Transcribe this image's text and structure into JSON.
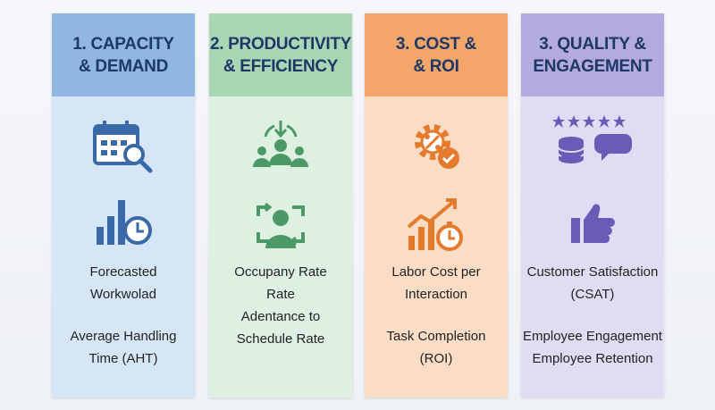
{
  "columns": [
    {
      "title": [
        "1. CAPACITY",
        "& DEMAND"
      ],
      "items": [
        [
          "Forecasted",
          "Workwolad"
        ],
        [
          "Average Handling",
          "Time (AHT)"
        ]
      ]
    },
    {
      "title": [
        "2. PRODUCTIVITY",
        "& EFFICIENCY"
      ],
      "items": [
        [
          "Occupany Rate",
          "Rate"
        ],
        [
          "Adentance to",
          "Schedule Rate"
        ]
      ]
    },
    {
      "title": [
        "3. COST &",
        "& ROI"
      ],
      "items": [
        [
          "Labor Cost per",
          "Interaction"
        ],
        [
          "Task Completion",
          "(ROI)"
        ]
      ]
    },
    {
      "title": [
        "3. QUALITY &",
        "ENGAGEMENT"
      ],
      "items": [
        [
          "Customer Satisfaction",
          "(CSAT)"
        ],
        [
          "Employee Engagement"
        ],
        [
          "Employee Retention"
        ]
      ]
    }
  ]
}
